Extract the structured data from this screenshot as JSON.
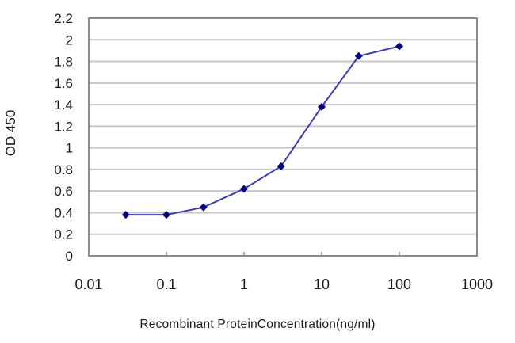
{
  "chart_data": {
    "type": "line",
    "title": "",
    "xlabel": "Recombinant ProteinConcentration(ng/ml)",
    "ylabel": "OD 450",
    "xscale": "log",
    "xlim": [
      0.01,
      1000
    ],
    "ylim": [
      0,
      2.2
    ],
    "x_ticks": [
      "0.01",
      "0.1",
      "1",
      "10",
      "100",
      "1000"
    ],
    "y_ticks": [
      "0",
      "0.2",
      "0.4",
      "0.6",
      "0.8",
      "1",
      "1.2",
      "1.4",
      "1.6",
      "1.8",
      "2",
      "2.2"
    ],
    "grid": {
      "horizontal": true,
      "vertical": false
    },
    "legend": null,
    "series": [
      {
        "name": "OD 450",
        "x": [
          0.03,
          0.1,
          0.3,
          1,
          3,
          10,
          30,
          100
        ],
        "values": [
          0.38,
          0.38,
          0.45,
          0.62,
          0.83,
          1.38,
          1.85,
          1.94
        ],
        "line_color": "#3b3bb0",
        "marker": "diamond",
        "marker_color": "#00007f"
      }
    ]
  },
  "colors": {
    "grid": "#c8c8c8",
    "axis": "#8a8a8a",
    "text": "#1a1a1a"
  }
}
